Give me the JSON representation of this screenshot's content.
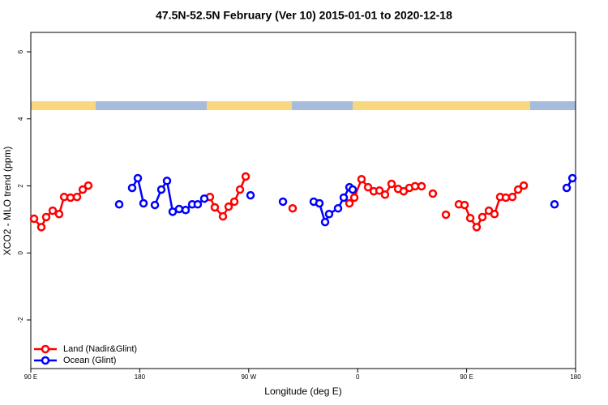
{
  "chart_data": {
    "type": "line",
    "title": "47.5N-52.5N February (Ver 10)   2015-01-01 to 2020-12-18",
    "xlabel": "Longitude (deg E)",
    "ylabel": "XCO2 - MLO trend (ppm)",
    "xlim": [
      90,
      540
    ],
    "ylim": [
      -3.45,
      6.58
    ],
    "xticks": [
      {
        "value": 90,
        "label": "90 E"
      },
      180,
      {
        "value": 270,
        "label": "90 W"
      },
      {
        "value": 360,
        "label": "0"
      },
      {
        "value": 450,
        "label": "90 E"
      },
      {
        "value": 540,
        "label": "180"
      }
    ],
    "yticks": [
      -2,
      0,
      2,
      4,
      6
    ],
    "legend": "bottom-left",
    "series": [
      {
        "name": "Land (Nadir&Glint)",
        "color": "#ff0000",
        "x": [
          92.7,
          98.7,
          102.7,
          108.1,
          113.4,
          117.5,
          122.8,
          128.2,
          132.9,
          137.5,
          null,
          238.0,
          242.0,
          248.7,
          253.4,
          258.1,
          262.8,
          267.5,
          null,
          306.3,
          null,
          353.2,
          357.2,
          363.2,
          368.6,
          373.3,
          378.0,
          382.6,
          388.0,
          393.4,
          398.0,
          402.7,
          407.4,
          412.8,
          null,
          422.1,
          null,
          432.9,
          null,
          443.6,
          448.3,
          453.0,
          458.3,
          463.0,
          468.4,
          473.0,
          477.7,
          482.4,
          487.8,
          492.5,
          497.2
        ],
        "values": [
          1.02,
          0.77,
          1.07,
          1.26,
          1.16,
          1.67,
          1.65,
          1.67,
          1.89,
          2.01,
          null,
          1.67,
          1.36,
          1.09,
          1.38,
          1.53,
          1.89,
          2.28,
          null,
          1.33,
          null,
          1.48,
          1.65,
          2.2,
          1.96,
          1.84,
          1.86,
          1.74,
          2.06,
          1.91,
          1.84,
          1.94,
          1.99,
          1.99,
          null,
          1.77,
          null,
          1.14,
          null,
          1.45,
          1.43,
          1.04,
          0.77,
          1.07,
          1.26,
          1.16,
          1.67,
          1.65,
          1.67,
          1.89,
          2.01
        ]
      },
      {
        "name": "Ocean (Glint)",
        "color": "#0000ff",
        "x": [
          163.0,
          null,
          173.7,
          178.4,
          183.1,
          null,
          192.5,
          197.8,
          202.5,
          207.2,
          212.5,
          217.9,
          223.3,
          227.9,
          233.3,
          null,
          271.5,
          null,
          298.3,
          null,
          323.7,
          328.4,
          333.1,
          336.4,
          343.8,
          348.5,
          353.2,
          355.9,
          null,
          522.6,
          null,
          532.7,
          537.4
        ],
        "values": [
          1.45,
          null,
          1.94,
          2.23,
          1.48,
          null,
          1.43,
          1.89,
          2.15,
          1.23,
          1.31,
          1.28,
          1.45,
          1.45,
          1.62,
          null,
          1.72,
          null,
          1.53,
          null,
          1.53,
          1.48,
          0.92,
          1.16,
          1.33,
          1.65,
          1.96,
          1.89,
          null,
          1.45,
          null,
          1.94,
          2.23
        ]
      }
    ]
  }
}
